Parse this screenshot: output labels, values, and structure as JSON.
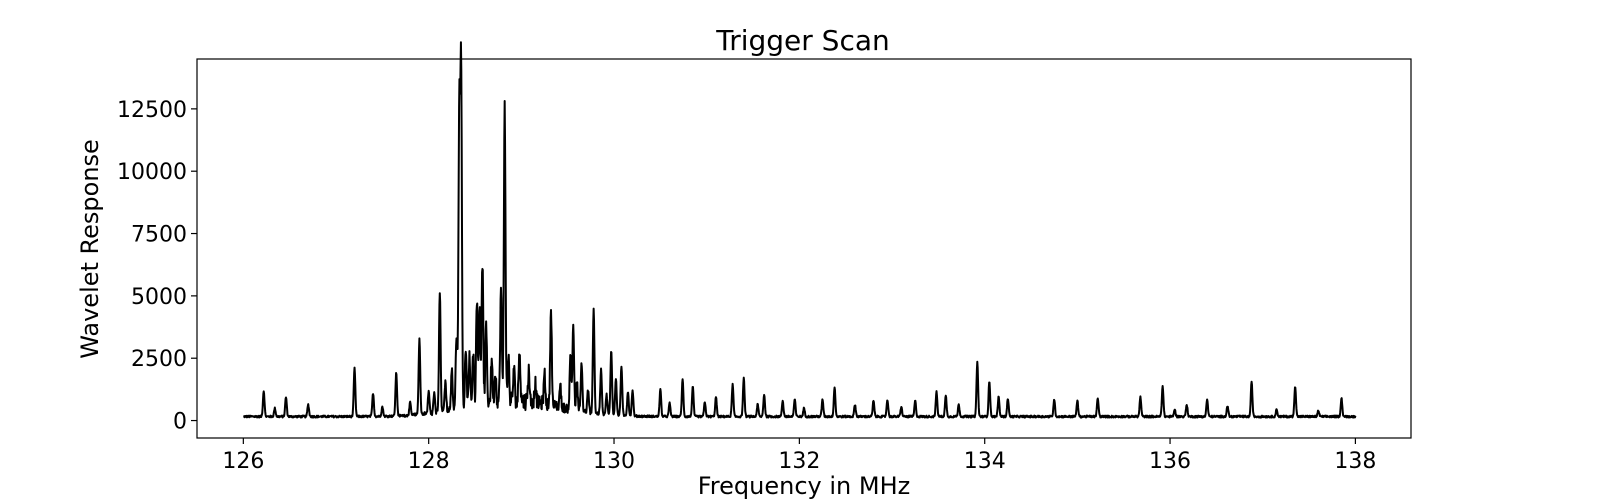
{
  "chart_data": {
    "type": "line",
    "title": "Trigger Scan",
    "xlabel": "Frequency in MHz",
    "ylabel": "Wavelet Response",
    "xlim": [
      125.5,
      138.6
    ],
    "ylim": [
      -700,
      14500
    ],
    "xticks": [
      126,
      128,
      130,
      132,
      134,
      136,
      138
    ],
    "yticks": [
      0,
      2500,
      5000,
      7500,
      10000,
      12500
    ],
    "grid": false,
    "legend": "none",
    "colors": {
      "line": "#000000"
    },
    "x_range": [
      126.0,
      138.0
    ],
    "baseline": 120,
    "noise_amplitude": 80,
    "peaks": [
      {
        "x": 126.22,
        "y": 1150
      },
      {
        "x": 126.34,
        "y": 450
      },
      {
        "x": 126.46,
        "y": 900
      },
      {
        "x": 126.7,
        "y": 600
      },
      {
        "x": 127.2,
        "y": 2050
      },
      {
        "x": 127.4,
        "y": 1050
      },
      {
        "x": 127.5,
        "y": 500
      },
      {
        "x": 127.65,
        "y": 1850
      },
      {
        "x": 127.8,
        "y": 600
      },
      {
        "x": 127.9,
        "y": 3150
      },
      {
        "x": 128.0,
        "y": 1000
      },
      {
        "x": 128.06,
        "y": 900
      },
      {
        "x": 128.12,
        "y": 4950
      },
      {
        "x": 128.18,
        "y": 1300
      },
      {
        "x": 128.25,
        "y": 1700
      },
      {
        "x": 128.3,
        "y": 3100
      },
      {
        "x": 128.33,
        "y": 12100
      },
      {
        "x": 128.35,
        "y": 13750
      },
      {
        "x": 128.4,
        "y": 2500
      },
      {
        "x": 128.44,
        "y": 2100
      },
      {
        "x": 128.48,
        "y": 2300
      },
      {
        "x": 128.52,
        "y": 4350
      },
      {
        "x": 128.55,
        "y": 4100
      },
      {
        "x": 128.58,
        "y": 5800
      },
      {
        "x": 128.62,
        "y": 3200
      },
      {
        "x": 128.68,
        "y": 1850
      },
      {
        "x": 128.72,
        "y": 1300
      },
      {
        "x": 128.78,
        "y": 4550
      },
      {
        "x": 128.82,
        "y": 12050
      },
      {
        "x": 128.86,
        "y": 1900
      },
      {
        "x": 128.92,
        "y": 1400
      },
      {
        "x": 128.98,
        "y": 2250
      },
      {
        "x": 129.08,
        "y": 1400
      },
      {
        "x": 129.15,
        "y": 900
      },
      {
        "x": 129.25,
        "y": 1300
      },
      {
        "x": 129.32,
        "y": 4000
      },
      {
        "x": 129.42,
        "y": 1000
      },
      {
        "x": 129.53,
        "y": 2300
      },
      {
        "x": 129.56,
        "y": 3550
      },
      {
        "x": 129.6,
        "y": 1250
      },
      {
        "x": 129.65,
        "y": 2050
      },
      {
        "x": 129.72,
        "y": 1000
      },
      {
        "x": 129.78,
        "y": 4300
      },
      {
        "x": 129.86,
        "y": 1900
      },
      {
        "x": 129.92,
        "y": 900
      },
      {
        "x": 129.97,
        "y": 2700
      },
      {
        "x": 130.02,
        "y": 1600
      },
      {
        "x": 130.08,
        "y": 2100
      },
      {
        "x": 130.15,
        "y": 1100
      },
      {
        "x": 130.2,
        "y": 1150
      },
      {
        "x": 130.5,
        "y": 1200
      },
      {
        "x": 130.6,
        "y": 650
      },
      {
        "x": 130.74,
        "y": 1600
      },
      {
        "x": 130.85,
        "y": 1300
      },
      {
        "x": 130.98,
        "y": 700
      },
      {
        "x": 131.1,
        "y": 900
      },
      {
        "x": 131.28,
        "y": 1400
      },
      {
        "x": 131.4,
        "y": 1650
      },
      {
        "x": 131.55,
        "y": 600
      },
      {
        "x": 131.62,
        "y": 1000
      },
      {
        "x": 131.82,
        "y": 750
      },
      {
        "x": 131.95,
        "y": 800
      },
      {
        "x": 132.05,
        "y": 450
      },
      {
        "x": 132.25,
        "y": 800
      },
      {
        "x": 132.38,
        "y": 1300
      },
      {
        "x": 132.6,
        "y": 600
      },
      {
        "x": 132.8,
        "y": 750
      },
      {
        "x": 132.95,
        "y": 800
      },
      {
        "x": 133.1,
        "y": 500
      },
      {
        "x": 133.25,
        "y": 750
      },
      {
        "x": 133.48,
        "y": 1100
      },
      {
        "x": 133.58,
        "y": 950
      },
      {
        "x": 133.72,
        "y": 600
      },
      {
        "x": 133.92,
        "y": 2300
      },
      {
        "x": 134.05,
        "y": 1550
      },
      {
        "x": 134.15,
        "y": 900
      },
      {
        "x": 134.25,
        "y": 850
      },
      {
        "x": 134.75,
        "y": 800
      },
      {
        "x": 135.0,
        "y": 750
      },
      {
        "x": 135.22,
        "y": 850
      },
      {
        "x": 135.68,
        "y": 900
      },
      {
        "x": 135.92,
        "y": 1350
      },
      {
        "x": 136.05,
        "y": 400
      },
      {
        "x": 136.18,
        "y": 600
      },
      {
        "x": 136.4,
        "y": 800
      },
      {
        "x": 136.62,
        "y": 550
      },
      {
        "x": 136.88,
        "y": 1500
      },
      {
        "x": 137.15,
        "y": 400
      },
      {
        "x": 137.35,
        "y": 1350
      },
      {
        "x": 137.6,
        "y": 350
      },
      {
        "x": 137.85,
        "y": 850
      }
    ]
  }
}
